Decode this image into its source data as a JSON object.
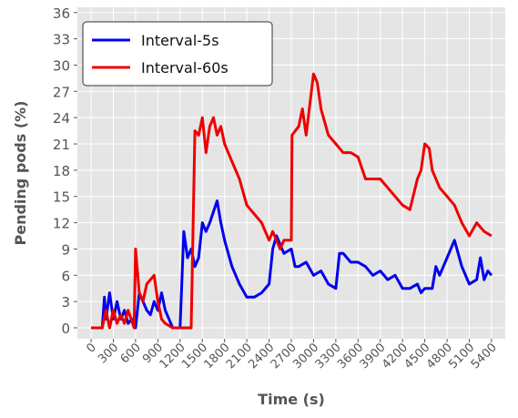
{
  "chart_data": {
    "type": "line",
    "x_label": "Time (s)",
    "y_label": "Pending pods (%)",
    "xlim": [
      -185,
      5585
    ],
    "ylim": [
      -1.25,
      36.6
    ],
    "xticks": [
      0,
      300,
      600,
      900,
      1200,
      1500,
      1800,
      2100,
      2400,
      2700,
      3000,
      3300,
      3600,
      3900,
      4200,
      4500,
      4800,
      5100,
      5400
    ],
    "yticks": [
      0,
      3,
      6,
      9,
      12,
      15,
      18,
      21,
      24,
      27,
      30,
      33,
      36
    ],
    "grid": true,
    "legend": "upper left",
    "series": [
      {
        "name": "Interval-5s",
        "color": "#0000ee",
        "x": [
          0,
          150,
          180,
          200,
          250,
          300,
          350,
          400,
          450,
          500,
          550,
          600,
          650,
          700,
          750,
          800,
          850,
          900,
          950,
          1000,
          1100,
          1200,
          1250,
          1300,
          1350,
          1400,
          1450,
          1500,
          1550,
          1600,
          1700,
          1750,
          1800,
          1900,
          2000,
          2100,
          2200,
          2300,
          2400,
          2450,
          2500,
          2600,
          2700,
          2750,
          2800,
          2900,
          3000,
          3100,
          3200,
          3300,
          3350,
          3400,
          3500,
          3600,
          3700,
          3800,
          3900,
          4000,
          4100,
          4200,
          4300,
          4400,
          4450,
          4500,
          4600,
          4650,
          4700,
          4800,
          4900,
          5000,
          5100,
          5200,
          5250,
          5300,
          5350,
          5400
        ],
        "values": [
          0,
          0,
          3.5,
          1,
          4,
          1,
          3,
          1,
          2,
          0.5,
          1,
          0,
          4,
          3,
          2,
          1.5,
          3,
          2,
          4,
          2,
          0,
          0,
          11,
          8,
          9,
          7,
          8,
          12,
          11,
          12,
          14.5,
          12,
          10,
          7,
          5,
          3.5,
          3.5,
          4,
          5,
          9,
          10.5,
          8.5,
          9,
          7,
          7,
          7.5,
          6,
          6.5,
          5,
          4.5,
          8.5,
          8.5,
          7.5,
          7.5,
          7,
          6,
          6.5,
          5.5,
          6,
          4.5,
          4.5,
          5,
          4,
          4.5,
          4.5,
          7,
          6,
          8,
          10,
          7,
          5,
          5.5,
          8,
          5.5,
          6.5,
          6
        ]
      },
      {
        "name": "Interval-60s",
        "color": "#ee0000",
        "x": [
          0,
          150,
          200,
          250,
          300,
          350,
          400,
          450,
          500,
          580,
          600,
          650,
          700,
          750,
          850,
          900,
          950,
          1000,
          1100,
          1200,
          1350,
          1400,
          1450,
          1500,
          1550,
          1600,
          1650,
          1700,
          1750,
          1800,
          1900,
          2000,
          2100,
          2200,
          2300,
          2400,
          2450,
          2500,
          2550,
          2600,
          2700,
          2710,
          2800,
          2850,
          2900,
          3000,
          3050,
          3100,
          3200,
          3300,
          3400,
          3500,
          3600,
          3700,
          3800,
          3900,
          4000,
          4100,
          4200,
          4300,
          4400,
          4450,
          4500,
          4560,
          4600,
          4700,
          4800,
          4900,
          5000,
          5100,
          5200,
          5300,
          5400
        ],
        "values": [
          0,
          0,
          2,
          0,
          2,
          0.5,
          1.5,
          0.5,
          2,
          0,
          9,
          4,
          3,
          5,
          6,
          3,
          1,
          0.5,
          0,
          0,
          0,
          22.5,
          22,
          24,
          20,
          23,
          24,
          22,
          23,
          21,
          19,
          17,
          14,
          13,
          12,
          10,
          11,
          10,
          9,
          10,
          10,
          22,
          23,
          25,
          22,
          29,
          28,
          25,
          22,
          21,
          20,
          20,
          19.5,
          17,
          17,
          17,
          16,
          15,
          14,
          13.5,
          17,
          18,
          21,
          20.5,
          18,
          16,
          15,
          14,
          12,
          10.5,
          12,
          11,
          10.5
        ]
      }
    ]
  }
}
